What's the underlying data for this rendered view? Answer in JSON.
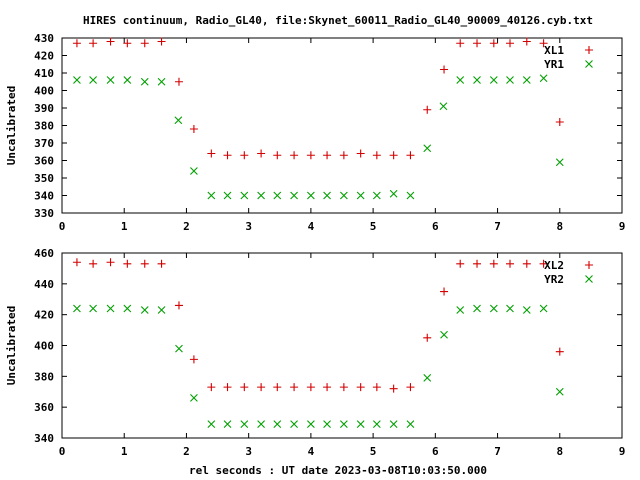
{
  "title": "HIRES continuum, Radio_GL40, file:Skynet_60011_Radio_GL40_90009_40126.cyb.txt",
  "xlabel": "rel seconds : UT date 2023-03-08T10:03:50.000",
  "colors": {
    "red": "#d40000",
    "green": "#00a000"
  },
  "chart_data": [
    {
      "type": "scatter",
      "ylabel": "Uncalibrated",
      "xlim": [
        0,
        9
      ],
      "ylim": [
        330,
        430
      ],
      "xticks": [
        0,
        1,
        2,
        3,
        4,
        5,
        6,
        7,
        8,
        9
      ],
      "yticks": [
        330,
        340,
        350,
        360,
        370,
        380,
        390,
        400,
        410,
        420,
        430
      ],
      "legend_position": "top-right",
      "series": [
        {
          "name": "XL1",
          "marker": "plus",
          "color": "#d40000",
          "x": [
            0.24,
            0.5,
            0.78,
            1.05,
            1.33,
            1.6,
            1.88,
            2.12,
            2.4,
            2.66,
            2.93,
            3.2,
            3.46,
            3.73,
            4.0,
            4.26,
            4.53,
            4.8,
            5.06,
            5.33,
            5.6,
            5.87,
            6.14,
            6.4,
            6.67,
            6.94,
            7.2,
            7.47,
            7.74,
            8.0
          ],
          "y": [
            427,
            427,
            428,
            427,
            427,
            428,
            405,
            378,
            364,
            363,
            363,
            364,
            363,
            363,
            363,
            363,
            363,
            364,
            363,
            363,
            363,
            389,
            412,
            427,
            427,
            427,
            427,
            428,
            427,
            382
          ]
        },
        {
          "name": "YR1",
          "marker": "cross",
          "color": "#00a000",
          "x": [
            0.24,
            0.5,
            0.78,
            1.05,
            1.33,
            1.6,
            1.88,
            2.12,
            2.4,
            2.66,
            2.93,
            3.2,
            3.46,
            3.73,
            4.0,
            4.26,
            4.53,
            4.8,
            5.06,
            5.33,
            5.6,
            5.87,
            6.14,
            6.4,
            6.67,
            6.94,
            7.2,
            7.47,
            7.74,
            8.0
          ],
          "y": [
            406,
            406,
            406,
            406,
            405,
            405,
            null,
            null,
            340,
            340,
            340,
            340,
            340,
            340,
            340,
            340,
            340,
            340,
            340,
            341,
            340,
            null,
            null,
            406,
            406,
            406,
            406,
            406,
            407,
            null
          ]
        },
        {
          "name": "",
          "marker": "cross",
          "color": "#00a000",
          "x": [
            1.87,
            2.12,
            5.87,
            6.13,
            8.0
          ],
          "y": [
            383,
            354,
            367,
            391,
            359
          ]
        }
      ]
    },
    {
      "type": "scatter",
      "ylabel": "Uncalibrated",
      "xlim": [
        0,
        9
      ],
      "ylim": [
        340,
        460
      ],
      "xticks": [
        0,
        1,
        2,
        3,
        4,
        5,
        6,
        7,
        8,
        9
      ],
      "yticks": [
        340,
        360,
        380,
        400,
        420,
        440,
        460
      ],
      "legend_position": "top-right",
      "series": [
        {
          "name": "XL2",
          "marker": "plus",
          "color": "#d40000",
          "x": [
            0.24,
            0.5,
            0.78,
            1.05,
            1.33,
            1.6,
            1.88,
            2.12,
            2.4,
            2.66,
            2.93,
            3.2,
            3.46,
            3.73,
            4.0,
            4.26,
            4.53,
            4.8,
            5.06,
            5.33,
            5.6,
            5.87,
            6.14,
            6.4,
            6.67,
            6.94,
            7.2,
            7.47,
            7.74,
            8.0
          ],
          "y": [
            454,
            453,
            454,
            453,
            453,
            453,
            426,
            391,
            373,
            373,
            373,
            373,
            373,
            373,
            373,
            373,
            373,
            373,
            373,
            372,
            373,
            405,
            435,
            453,
            453,
            453,
            453,
            453,
            453,
            396
          ]
        },
        {
          "name": "YR2",
          "marker": "cross",
          "color": "#00a000",
          "x": [
            0.24,
            0.5,
            0.78,
            1.05,
            1.33,
            1.6,
            1.88,
            2.12,
            2.4,
            2.66,
            2.93,
            3.2,
            3.46,
            3.73,
            4.0,
            4.26,
            4.53,
            4.8,
            5.06,
            5.33,
            5.6,
            5.87,
            6.14,
            6.4,
            6.67,
            6.94,
            7.2,
            7.47,
            7.74,
            8.0
          ],
          "y": [
            424,
            424,
            424,
            424,
            423,
            423,
            398,
            366,
            349,
            349,
            349,
            349,
            349,
            349,
            349,
            349,
            349,
            349,
            349,
            349,
            349,
            379,
            407,
            423,
            424,
            424,
            424,
            423,
            424,
            370
          ]
        }
      ]
    }
  ]
}
